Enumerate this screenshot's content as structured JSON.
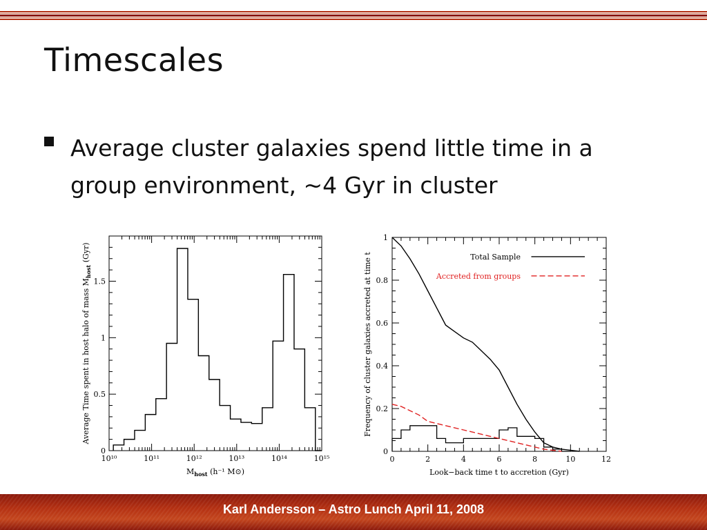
{
  "slide": {
    "title": "Timescales",
    "bullet": "Average cluster galaxies spend little time in a group environment,  ~4 Gyr in cluster",
    "footer": "Karl Andersson – Astro Lunch  April 11, 2008",
    "accent_color": "#b43012"
  },
  "chart_data": [
    {
      "type": "bar",
      "style": "step-histogram",
      "xscale": "log",
      "xlim": [
        10000000000.0,
        1000000000000000.0
      ],
      "ylim": [
        0,
        1.9
      ],
      "xticks": [
        10000000000.0,
        100000000000.0,
        1000000000000.0,
        10000000000000.0,
        100000000000000.0,
        1000000000000000.0
      ],
      "xtick_labels": [
        "10¹⁰",
        "10¹¹",
        "10¹²",
        "10¹³",
        "10¹⁴",
        "10¹⁵"
      ],
      "yticks": [
        0,
        0.5,
        1,
        1.5
      ],
      "ytick_labels": [
        "0",
        "0.5",
        "1",
        "1.5"
      ],
      "xlabel": "M_host (h⁻¹ M⊙)",
      "xlabel_parts": {
        "main": "M",
        "sub": "host",
        "rest": " (h⁻¹ M⊙)"
      },
      "ylabel": "Average Time spent in host halo of mass M_host (Gyr)",
      "ylabel_parts": {
        "main": "Average Time spent in host halo of mass M",
        "sub": "host",
        "rest": " (Gyr)"
      },
      "bin_edges_log10": [
        10.1,
        10.35,
        10.6,
        10.85,
        11.1,
        11.35,
        11.6,
        11.85,
        12.1,
        12.35,
        12.6,
        12.85,
        13.1,
        13.35,
        13.6,
        13.85,
        14.1,
        14.35,
        14.6,
        14.85,
        15.0
      ],
      "values": [
        0.05,
        0.1,
        0.18,
        0.32,
        0.46,
        0.95,
        1.79,
        1.34,
        0.84,
        0.63,
        0.4,
        0.28,
        0.25,
        0.24,
        0.38,
        0.97,
        1.56,
        0.9,
        0.38,
        0.0
      ]
    },
    {
      "type": "line",
      "style": "line-and-step-histogram",
      "xlim": [
        0,
        12
      ],
      "ylim": [
        0,
        1
      ],
      "xticks": [
        0,
        2,
        4,
        6,
        8,
        10,
        12
      ],
      "xtick_labels": [
        "0",
        "2",
        "4",
        "6",
        "8",
        "10",
        "12"
      ],
      "yticks": [
        0,
        0.2,
        0.4,
        0.6,
        0.8,
        1
      ],
      "ytick_labels": [
        "0",
        "0.2",
        "0.4",
        "0.6",
        "0.8",
        "1"
      ],
      "xlabel": "Look−back time t to accretion (Gyr)",
      "ylabel": "Frequency of cluster galaxies accreted at time t",
      "legend_position": "top-right",
      "series": [
        {
          "name": "Total Sample",
          "color": "#000000",
          "dash": "solid",
          "x": [
            0,
            0.5,
            1,
            1.5,
            2,
            2.5,
            3,
            3.5,
            4,
            4.5,
            5,
            5.5,
            6,
            6.5,
            7,
            7.5,
            8,
            8.5,
            9,
            9.5,
            10,
            10.5
          ],
          "y": [
            1.0,
            0.96,
            0.9,
            0.83,
            0.75,
            0.67,
            0.59,
            0.56,
            0.53,
            0.51,
            0.47,
            0.43,
            0.38,
            0.3,
            0.22,
            0.15,
            0.09,
            0.04,
            0.02,
            0.01,
            0.005,
            0.0
          ]
        },
        {
          "name": "Accreted from groups",
          "color": "#e02020",
          "dash": "dashed",
          "x": [
            0,
            0.5,
            1,
            1.5,
            2,
            2.5,
            3,
            3.5,
            4,
            4.5,
            5,
            5.5,
            6,
            6.5,
            7,
            7.5,
            8,
            8.5,
            9,
            9.5
          ],
          "y": [
            0.22,
            0.21,
            0.19,
            0.17,
            0.14,
            0.13,
            0.12,
            0.11,
            0.1,
            0.09,
            0.08,
            0.07,
            0.06,
            0.05,
            0.04,
            0.03,
            0.02,
            0.01,
            0.005,
            0.0
          ]
        }
      ],
      "histogram": {
        "color": "#000000",
        "bin_edges": [
          0,
          0.5,
          1,
          1.5,
          2,
          2.5,
          3,
          3.5,
          4,
          4.5,
          5,
          5.5,
          6,
          6.5,
          7,
          7.5,
          8,
          8.5,
          9,
          9.5,
          10
        ],
        "values": [
          0.06,
          0.1,
          0.12,
          0.12,
          0.12,
          0.06,
          0.04,
          0.04,
          0.06,
          0.06,
          0.06,
          0.06,
          0.1,
          0.11,
          0.07,
          0.07,
          0.06,
          0.02,
          0.01,
          0.0
        ]
      }
    }
  ]
}
